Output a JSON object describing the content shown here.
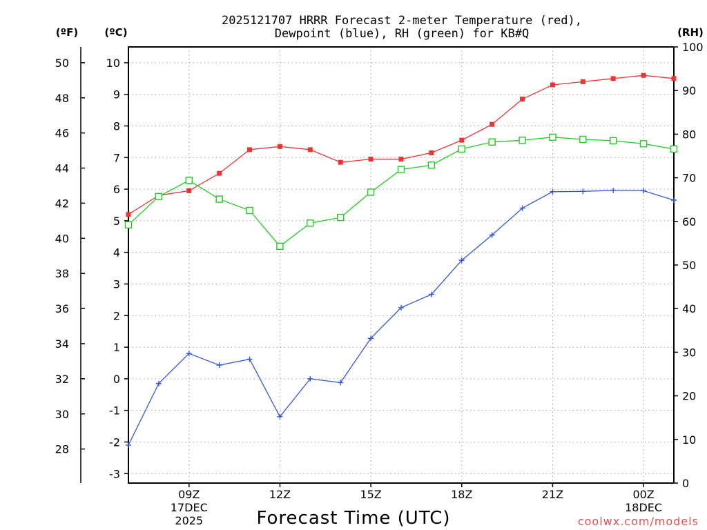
{
  "title_line1": "2025121707 HRRR Forecast 2-meter Temperature (red),",
  "title_line2": "Dewpoint (blue), RH (green) for KB#Q",
  "unit_f": "(ºF)",
  "unit_c": "(ºC)",
  "unit_rh": "(RH)",
  "credit": "coolwx.com/models",
  "colors": {
    "temp": "#ee3333",
    "dew": "#3355dd",
    "rh": "#22cc22",
    "credit": "#e05050"
  },
  "chart_data": {
    "type": "line",
    "title": "2025121707 HRRR Forecast 2-meter Temperature (red), Dewpoint (blue), RH (green) for KB#Q",
    "xlabel": "Forecast Time (UTC)",
    "x_hours_utc": [
      7,
      8,
      9,
      10,
      11,
      12,
      13,
      14,
      15,
      16,
      17,
      18,
      19,
      20,
      21,
      22,
      23,
      24,
      25
    ],
    "x_range": [
      7,
      25
    ],
    "x_ticks": [
      {
        "hour": 9,
        "label": "09Z",
        "sub1": "17DEC",
        "sub2": "2025"
      },
      {
        "hour": 12,
        "label": "12Z"
      },
      {
        "hour": 15,
        "label": "15Z"
      },
      {
        "hour": 18,
        "label": "18Z"
      },
      {
        "hour": 21,
        "label": "21Z"
      },
      {
        "hour": 24,
        "label": "00Z",
        "sub1": "18DEC"
      }
    ],
    "y_celsius": {
      "range": [
        -3.3,
        10.5
      ],
      "ticks": [
        -3,
        -2,
        -1,
        0,
        1,
        2,
        3,
        4,
        5,
        6,
        7,
        8,
        9,
        10
      ]
    },
    "y_fahrenheit": {
      "range": [
        26.06,
        50.9
      ],
      "ticks": [
        28,
        30,
        32,
        34,
        36,
        38,
        40,
        42,
        44,
        46,
        48,
        50
      ]
    },
    "y_rh": {
      "range": [
        0,
        100
      ],
      "ticks": [
        0,
        10,
        20,
        30,
        40,
        50,
        60,
        70,
        80,
        90,
        100
      ]
    },
    "series": [
      {
        "name": "2-meter Temperature",
        "color": "red",
        "units": "C",
        "marker": "filled-square",
        "values": [
          5.2,
          5.8,
          5.95,
          6.5,
          7.25,
          7.35,
          7.25,
          6.85,
          6.95,
          6.95,
          7.15,
          7.55,
          8.05,
          8.85,
          9.3,
          9.4,
          9.5,
          9.6,
          9.5
        ]
      },
      {
        "name": "Dewpoint",
        "color": "blue",
        "units": "C",
        "marker": "plus",
        "values": [
          -2.1,
          -0.15,
          0.8,
          0.43,
          0.62,
          -1.2,
          0.0,
          -0.12,
          1.28,
          2.25,
          2.67,
          3.75,
          4.55,
          5.4,
          5.92,
          5.93,
          5.96,
          5.95,
          5.65
        ]
      },
      {
        "name": "Relative Humidity",
        "color": "green",
        "units": "%",
        "marker": "open-square",
        "values": [
          59.2,
          65.7,
          69.4,
          65.1,
          62.5,
          54.3,
          59.6,
          60.9,
          66.7,
          71.9,
          72.9,
          76.6,
          78.2,
          78.6,
          79.3,
          78.8,
          78.5,
          77.8,
          76.6
        ]
      }
    ]
  }
}
